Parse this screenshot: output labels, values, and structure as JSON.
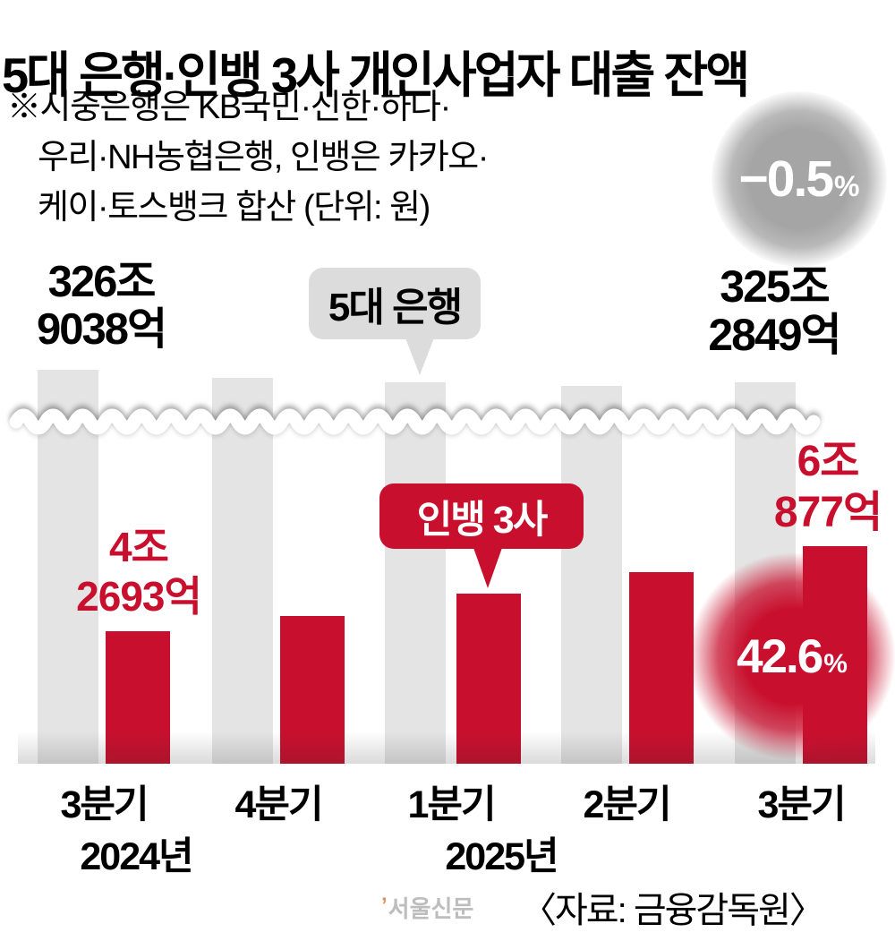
{
  "title": "5대 은행·인뱅 3사 개인사업자 대출 잔액",
  "note": {
    "line1": "※시중은행은 KB국민·신한·하나·",
    "line2": "우리·NH농협은행, 인뱅은 카카오·",
    "line3": "케이·토스뱅크 합산 (단위: 원)"
  },
  "badge": {
    "value": "−0.5",
    "unit": "%"
  },
  "bubbles": {
    "bank": "5대 은행",
    "ibank": "인뱅 3사"
  },
  "values": {
    "bank_start": {
      "line1": "326조",
      "line2": "9038억"
    },
    "bank_end": {
      "line1": "325조",
      "line2": "2849억"
    },
    "ibank_start": {
      "line1": "4조",
      "line2": "2693억"
    },
    "ibank_end": {
      "line1": "6조",
      "line2": "877억"
    },
    "growth": {
      "value": "42.6",
      "unit": "%"
    }
  },
  "axis": {
    "quarters": [
      "3분기",
      "4분기",
      "1분기",
      "2분기",
      "3분기"
    ],
    "year_left": "2024년",
    "year_right": "2025년"
  },
  "footer": {
    "logo_mark": "’",
    "logo": "서울신문",
    "source": "〈자료: 금융감독원〉"
  },
  "colors": {
    "red": "#c8102e",
    "bar_gray": "#e4e4e4",
    "bubble_gray": "#dcdcdc",
    "badge_gray": "#a5a5a5",
    "logo_gray": "#bdbdbd",
    "logo_mark_orange": "#e2915a"
  },
  "chart_data": {
    "type": "bar",
    "title": "5대 은행·인뱅 3사 개인사업자 대출 잔액",
    "unit": "원",
    "categories": [
      "2024년 3분기",
      "2024년 4분기",
      "2025년 1분기",
      "2025년 2분기",
      "2025년 3분기"
    ],
    "series": [
      {
        "name": "5대 은행",
        "color": "#e4e4e4",
        "values_trillion_won": [
          326.9038,
          null,
          null,
          null,
          325.2849
        ],
        "labeled_values": {
          "2024년 3분기": "326조 9038억",
          "2025년 3분기": "325조 2849억"
        },
        "change_pct": -0.5
      },
      {
        "name": "인뱅 3사",
        "color": "#c8102e",
        "values_trillion_won": [
          4.2693,
          null,
          null,
          null,
          6.0877
        ],
        "labeled_values": {
          "2024년 3분기": "4조 2693억",
          "2025년 3분기": "6조 877억"
        },
        "change_pct": 42.6
      }
    ],
    "axis_break": true,
    "grid": false,
    "legend_position": "callout-bubbles"
  }
}
